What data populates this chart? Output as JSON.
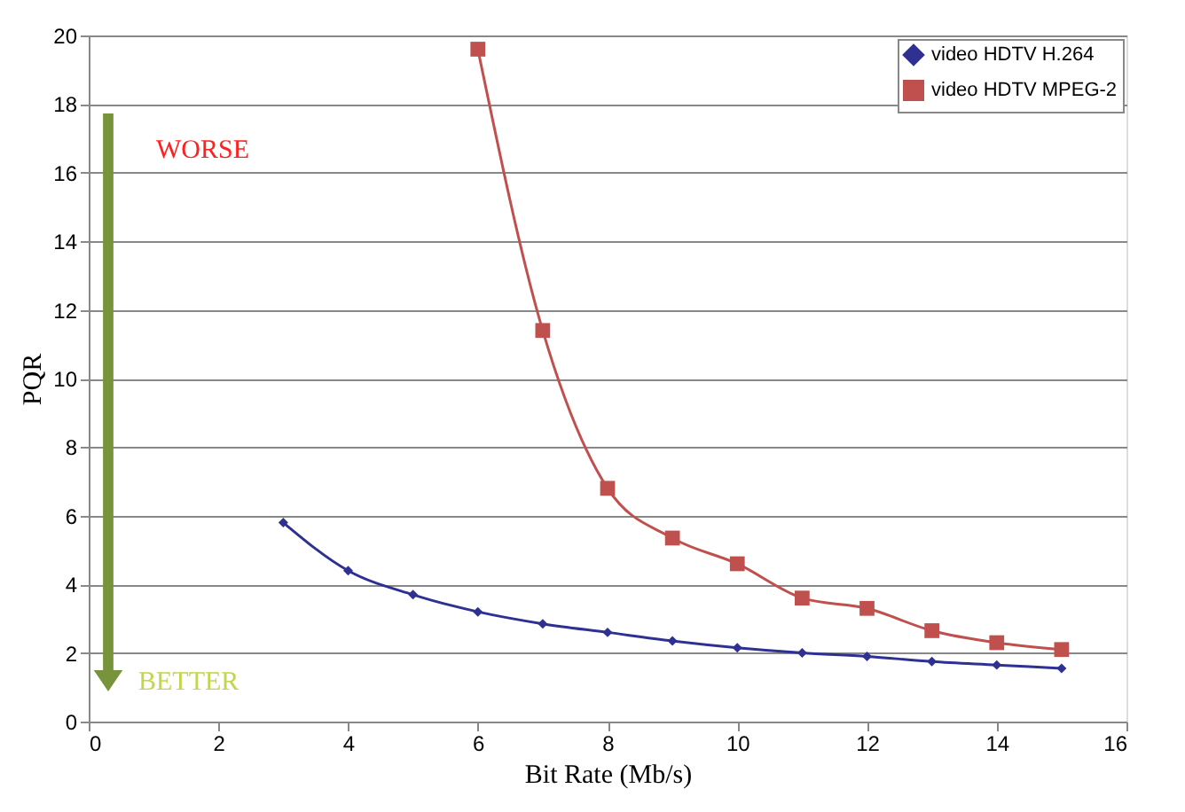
{
  "chart_data": {
    "type": "line",
    "xlabel": "Bit Rate (Mb/s)",
    "ylabel": "PQR",
    "xlim": [
      0,
      16
    ],
    "xticks": [
      0,
      2,
      4,
      6,
      8,
      10,
      12,
      14,
      16
    ],
    "ylim": [
      0,
      20
    ],
    "yticks": [
      0,
      2,
      4,
      6,
      8,
      10,
      12,
      14,
      16,
      18,
      20
    ],
    "grid": "y",
    "legend": "top right",
    "series": [
      {
        "name": "video HDTV H.264",
        "color": "#2e3192",
        "marker": "diamond",
        "x": [
          3,
          4,
          5,
          6,
          7,
          8,
          9,
          10,
          11,
          12,
          13,
          14,
          15
        ],
        "values": [
          5.8,
          4.4,
          3.7,
          3.2,
          2.85,
          2.6,
          2.35,
          2.15,
          2.0,
          1.9,
          1.75,
          1.65,
          1.55
        ]
      },
      {
        "name": "video HDTV MPEG-2",
        "color": "#c0504d",
        "marker": "square",
        "x": [
          6,
          7,
          8,
          9,
          10,
          11,
          12,
          13,
          14,
          15
        ],
        "values": [
          19.6,
          11.4,
          6.8,
          5.35,
          4.6,
          3.6,
          3.3,
          2.65,
          2.3,
          2.1
        ]
      }
    ],
    "annotations": [
      "WORSE",
      "BETTER"
    ]
  }
}
